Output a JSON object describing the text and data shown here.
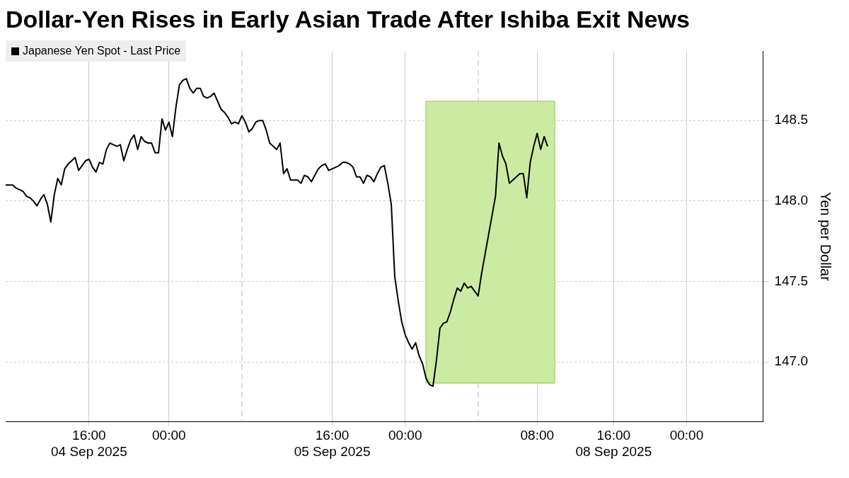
{
  "chart_data": {
    "type": "line",
    "title": "Dollar-Yen Rises in Early Asian Trade After Ishiba Exit News",
    "ylabel": "Yen per Dollar",
    "categories": [
      null,
      null,
      null,
      null,
      null,
      null,
      null,
      null,
      null,
      null,
      null,
      null,
      null,
      null,
      null,
      null,
      null,
      null,
      null,
      null,
      null,
      null,
      null,
      null,
      "16:00\n04 Sep 2025",
      null,
      null,
      null,
      null,
      null,
      null,
      null,
      null,
      null,
      null,
      null,
      null,
      null,
      null,
      null,
      null,
      null,
      null,
      null,
      null,
      null,
      null,
      "00:00",
      null,
      null,
      null,
      null,
      null,
      null,
      null,
      null,
      null,
      null,
      null,
      null,
      null,
      null,
      null,
      null,
      null,
      null,
      null,
      null,
      null,
      null,
      null,
      null,
      null,
      null,
      null,
      null,
      null,
      null,
      null,
      null,
      null,
      null,
      null,
      null,
      null,
      null,
      null,
      null,
      null,
      null,
      null,
      null,
      null,
      null,
      "16:00\n05 Sep 2025",
      null,
      null,
      null,
      null,
      null,
      null,
      null,
      null,
      null,
      null,
      null,
      null,
      null,
      null,
      null,
      null,
      null,
      null,
      null,
      null,
      "00:00",
      null,
      null,
      null,
      null,
      null,
      null,
      null,
      null,
      null,
      null,
      null,
      null,
      null,
      null,
      null,
      null,
      null,
      null,
      null,
      null,
      null,
      null,
      null,
      null,
      null,
      null,
      null,
      null,
      null,
      null,
      null,
      null,
      null,
      null,
      null,
      null,
      null,
      "08:00",
      null,
      null,
      null,
      null,
      null,
      null,
      null,
      null,
      null,
      null,
      null,
      null,
      null,
      null,
      null,
      null,
      null,
      null,
      null,
      null,
      null,
      "16:00\n08 Sep 2025",
      null,
      null,
      null,
      null,
      null,
      null,
      null,
      null,
      null,
      null,
      null,
      null,
      null,
      null,
      null,
      null,
      null,
      null,
      null,
      null,
      "00:00",
      null,
      null,
      null,
      null,
      null,
      null,
      null,
      null,
      null,
      null,
      null,
      null,
      null,
      null,
      null,
      null,
      null,
      null,
      null,
      null,
      null,
      null
    ],
    "ylim": [
      146.63,
      148.93
    ],
    "yticks": [
      {
        "value": 147,
        "label": "147.0"
      },
      {
        "value": 147.5,
        "label": "147.5"
      },
      {
        "value": 148,
        "label": "148.0"
      },
      {
        "value": 148.5,
        "label": "148.5"
      }
    ],
    "grid": true,
    "legend": "top left",
    "marker": "none",
    "line_style": "solid",
    "series": [
      {
        "name": "Japanese Yen Spot - Last Price",
        "color": "#000000",
        "values": [
          148.1,
          148.1,
          148.1,
          148.08,
          148.07,
          148.06,
          148.03,
          148.02,
          148.0,
          147.97,
          148.01,
          148.04,
          147.98,
          147.87,
          148.04,
          148.14,
          148.1,
          148.2,
          148.23,
          148.25,
          148.27,
          148.19,
          148.22,
          148.25,
          148.26,
          148.21,
          148.18,
          148.24,
          148.23,
          148.32,
          148.36,
          148.35,
          148.34,
          148.35,
          148.25,
          148.32,
          148.38,
          148.41,
          148.32,
          148.4,
          148.37,
          148.36,
          148.36,
          148.3,
          148.3,
          148.51,
          148.44,
          148.49,
          148.4,
          148.58,
          148.72,
          148.75,
          148.76,
          148.7,
          148.67,
          148.7,
          148.7,
          148.65,
          148.64,
          148.65,
          148.67,
          148.62,
          148.57,
          148.55,
          148.52,
          148.48,
          148.49,
          148.48,
          148.53,
          148.49,
          148.43,
          148.45,
          148.49,
          148.5,
          148.5,
          148.44,
          148.36,
          148.34,
          148.32,
          148.36,
          148.17,
          148.2,
          148.13,
          148.13,
          148.13,
          148.11,
          148.16,
          148.15,
          148.12,
          148.16,
          148.2,
          148.22,
          148.23,
          148.19,
          148.2,
          148.21,
          148.22,
          148.24,
          148.24,
          148.23,
          148.21,
          148.15,
          148.15,
          148.11,
          148.16,
          148.15,
          148.12,
          148.17,
          148.21,
          148.22,
          148.11,
          147.98,
          147.53,
          147.38,
          147.25,
          147.17,
          147.12,
          147.08,
          147.12,
          147.04,
          146.99,
          146.9,
          146.86,
          146.85,
          147.01,
          147.21,
          147.24,
          147.25,
          147.31,
          147.39,
          147.46,
          147.44,
          147.49,
          147.46,
          147.47,
          147.44,
          147.41,
          147.55,
          147.67,
          147.79,
          147.91,
          148.03,
          148.36,
          148.28,
          148.23,
          148.11,
          148.13,
          148.15,
          148.17,
          148.17,
          148.02,
          148.24,
          148.34,
          148.42,
          148.32,
          148.4,
          148.34,
          null,
          null,
          null,
          null,
          null,
          null,
          null,
          null,
          null,
          null,
          null,
          null,
          null,
          null,
          null,
          null,
          null,
          null,
          null,
          null,
          null,
          null,
          null,
          null,
          null,
          null,
          null,
          null,
          null,
          null,
          null,
          null,
          null,
          null,
          null,
          null,
          null,
          null,
          null,
          null,
          null,
          null,
          null,
          null,
          null,
          null,
          null,
          null,
          null,
          null,
          null,
          null,
          null,
          null,
          null,
          null,
          null,
          null,
          null,
          null,
          null,
          null
        ]
      }
    ]
  }
}
